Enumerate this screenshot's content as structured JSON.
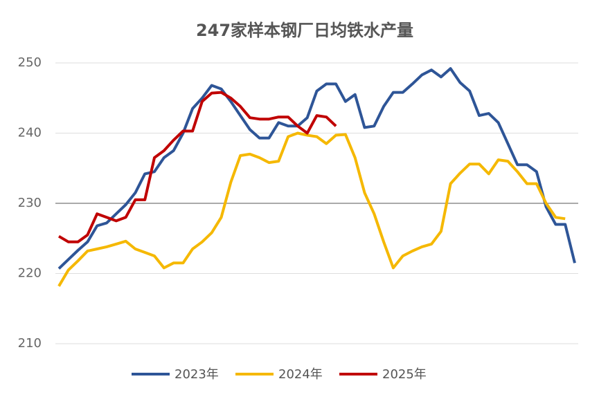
{
  "chart_data": {
    "type": "line",
    "title": "247家样本钢厂日均铁水产量",
    "categories": [
      null,
      null,
      null,
      null,
      null,
      null,
      null,
      null,
      null,
      null,
      null,
      null,
      null,
      null,
      null,
      null,
      null,
      null,
      null,
      null,
      null,
      null,
      null,
      null,
      null,
      null,
      null,
      null,
      null,
      null,
      null,
      null,
      null,
      null,
      null,
      null,
      null,
      null,
      null,
      null,
      null,
      null,
      null,
      null,
      null,
      null,
      null,
      null,
      null,
      null,
      null,
      null,
      null,
      null,
      null
    ],
    "series": [
      {
        "name": "2023年",
        "color": "#2e5597",
        "values": [
          220.7,
          222,
          223.3,
          224.5,
          226.8,
          227.2,
          228.5,
          229.8,
          231.5,
          234.2,
          234.5,
          236.5,
          237.5,
          240,
          243.5,
          245,
          246.8,
          246.3,
          244.5,
          242.5,
          240.5,
          239.3,
          239.3,
          241.5,
          241,
          241,
          242.2,
          246,
          247,
          247,
          244.5,
          245.5,
          240.8,
          241,
          243.8,
          245.8,
          245.8,
          247,
          248.3,
          249,
          248,
          249.2,
          247.2,
          246,
          242.5,
          242.8,
          241.5,
          238.5,
          235.5,
          235.5,
          234.5,
          229.5,
          227,
          227,
          221.5
        ]
      },
      {
        "name": "2024年",
        "color": "#f5b800",
        "values": [
          218.2,
          220.5,
          221.8,
          223.2,
          223.5,
          223.8,
          224.2,
          224.6,
          223.5,
          223,
          222.5,
          220.8,
          221.5,
          221.5,
          223.5,
          224.5,
          225.8,
          228,
          233,
          236.8,
          237,
          236.5,
          235.8,
          236,
          239.5,
          240,
          239.7,
          239.5,
          238.5,
          239.7,
          239.8,
          236.5,
          231.5,
          228.5,
          224.5,
          220.8,
          222.5,
          223.2,
          223.8,
          224.2,
          226,
          232.8,
          234.3,
          235.6,
          235.6,
          234.2,
          236.2,
          236,
          234.5,
          232.8,
          232.8,
          230,
          228,
          227.8,
          null
        ]
      },
      {
        "name": "2025年",
        "color": "#c00000",
        "values": [
          225.3,
          224.5,
          224.5,
          225.5,
          228.5,
          228,
          227.5,
          228,
          230.5,
          230.5,
          236.5,
          237.5,
          239,
          240.3,
          240.3,
          244.5,
          245.7,
          245.8,
          245,
          243.8,
          242.2,
          242,
          242,
          242.3,
          242.3,
          241,
          240,
          242.5,
          242.3,
          241,
          null,
          null,
          null,
          null,
          null,
          null,
          null,
          null,
          null,
          null,
          null,
          null,
          null,
          null,
          null,
          null,
          null,
          null,
          null,
          null,
          null,
          null,
          null,
          null,
          null
        ]
      }
    ],
    "ylim": [
      210,
      250
    ],
    "yticks": [
      210,
      220,
      230,
      240,
      250
    ],
    "grid": true,
    "axis_line": 230,
    "legend": "bottom"
  }
}
